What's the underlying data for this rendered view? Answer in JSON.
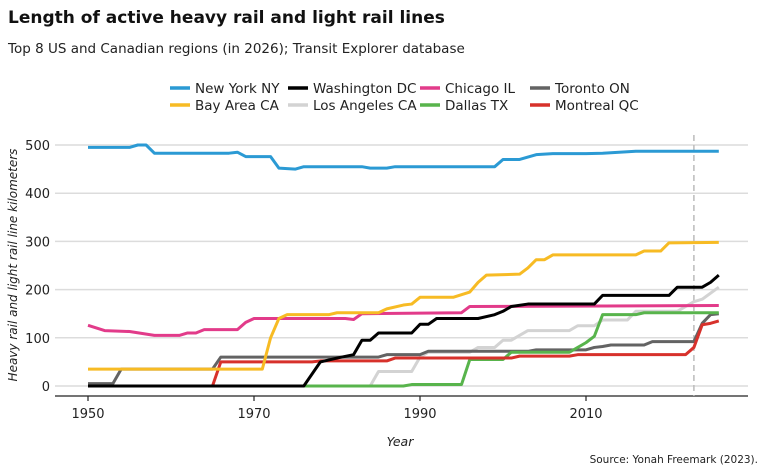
{
  "chart_data": {
    "type": "line",
    "title": "Length of active heavy rail and light rail lines",
    "subtitle": "Top 8 US and Canadian regions (in 2026); Transit Explorer database",
    "xlabel": "Year",
    "ylabel": "Heavy rail and light rail line kilometers",
    "source": "Source: Yonah Freemark (2023).",
    "xlim": [
      1948,
      2028
    ],
    "ylim": [
      -20,
      520
    ],
    "xticks": [
      1950,
      1970,
      1990,
      2010
    ],
    "yticks": [
      0,
      100,
      200,
      300,
      400,
      500
    ],
    "reference_line_year": 2023,
    "legend_position": "top",
    "series": [
      {
        "name": "New York NY",
        "color": "#2b9ad4",
        "points": [
          [
            1950,
            495
          ],
          [
            1955,
            495
          ],
          [
            1956,
            500
          ],
          [
            1957,
            500
          ],
          [
            1958,
            483
          ],
          [
            1967,
            483
          ],
          [
            1968,
            485
          ],
          [
            1969,
            476
          ],
          [
            1972,
            476
          ],
          [
            1973,
            452
          ],
          [
            1975,
            450
          ],
          [
            1976,
            455
          ],
          [
            1983,
            455
          ],
          [
            1984,
            452
          ],
          [
            1986,
            452
          ],
          [
            1987,
            455
          ],
          [
            1999,
            455
          ],
          [
            2000,
            470
          ],
          [
            2002,
            470
          ],
          [
            2004,
            480
          ],
          [
            2006,
            482
          ],
          [
            2010,
            482
          ],
          [
            2012,
            483
          ],
          [
            2016,
            487
          ],
          [
            2026,
            487
          ]
        ]
      },
      {
        "name": "Bay Area CA",
        "color": "#f7bb24",
        "points": [
          [
            1950,
            35
          ],
          [
            1971,
            35
          ],
          [
            1972,
            100
          ],
          [
            1973,
            140
          ],
          [
            1974,
            148
          ],
          [
            1979,
            148
          ],
          [
            1980,
            152
          ],
          [
            1985,
            152
          ],
          [
            1986,
            160
          ],
          [
            1988,
            168
          ],
          [
            1989,
            170
          ],
          [
            1990,
            184
          ],
          [
            1994,
            184
          ],
          [
            1996,
            195
          ],
          [
            1997,
            215
          ],
          [
            1998,
            230
          ],
          [
            2002,
            232
          ],
          [
            2003,
            245
          ],
          [
            2004,
            262
          ],
          [
            2005,
            262
          ],
          [
            2006,
            272
          ],
          [
            2016,
            272
          ],
          [
            2017,
            280
          ],
          [
            2019,
            280
          ],
          [
            2020,
            297
          ],
          [
            2026,
            298
          ]
        ]
      },
      {
        "name": "Washington DC",
        "color": "#000000",
        "points": [
          [
            1950,
            0
          ],
          [
            1976,
            0
          ],
          [
            1978,
            50
          ],
          [
            1980,
            58
          ],
          [
            1982,
            65
          ],
          [
            1983,
            95
          ],
          [
            1984,
            95
          ],
          [
            1985,
            110
          ],
          [
            1989,
            110
          ],
          [
            1990,
            128
          ],
          [
            1991,
            128
          ],
          [
            1992,
            140
          ],
          [
            1997,
            140
          ],
          [
            1999,
            148
          ],
          [
            2000,
            155
          ],
          [
            2001,
            165
          ],
          [
            2003,
            170
          ],
          [
            2011,
            170
          ],
          [
            2012,
            188
          ],
          [
            2020,
            188
          ],
          [
            2021,
            205
          ],
          [
            2024,
            205
          ],
          [
            2025,
            215
          ],
          [
            2026,
            230
          ]
        ]
      },
      {
        "name": "Los Angeles CA",
        "color": "#d3d3d3",
        "points": [
          [
            1950,
            0
          ],
          [
            1984,
            0
          ],
          [
            1985,
            30
          ],
          [
            1989,
            30
          ],
          [
            1990,
            60
          ],
          [
            1991,
            70
          ],
          [
            1996,
            70
          ],
          [
            1997,
            80
          ],
          [
            1999,
            80
          ],
          [
            2000,
            95
          ],
          [
            2001,
            95
          ],
          [
            2003,
            115
          ],
          [
            2008,
            115
          ],
          [
            2009,
            125
          ],
          [
            2011,
            125
          ],
          [
            2012,
            137
          ],
          [
            2015,
            137
          ],
          [
            2016,
            155
          ],
          [
            2021,
            155
          ],
          [
            2023,
            175
          ],
          [
            2024,
            180
          ],
          [
            2026,
            205
          ]
        ]
      },
      {
        "name": "Chicago IL",
        "color": "#e23b8a",
        "points": [
          [
            1950,
            126
          ],
          [
            1952,
            115
          ],
          [
            1955,
            113
          ],
          [
            1958,
            105
          ],
          [
            1961,
            105
          ],
          [
            1962,
            110
          ],
          [
            1963,
            110
          ],
          [
            1964,
            117
          ],
          [
            1968,
            117
          ],
          [
            1969,
            132
          ],
          [
            1970,
            140
          ],
          [
            1981,
            140
          ],
          [
            1982,
            138
          ],
          [
            1983,
            150
          ],
          [
            1995,
            152
          ],
          [
            1996,
            165
          ],
          [
            2026,
            167
          ]
        ]
      },
      {
        "name": "Dallas TX",
        "color": "#58b44c",
        "points": [
          [
            1950,
            0
          ],
          [
            1988,
            0
          ],
          [
            1989,
            3
          ],
          [
            1995,
            3
          ],
          [
            1996,
            55
          ],
          [
            2000,
            55
          ],
          [
            2001,
            70
          ],
          [
            2008,
            70
          ],
          [
            2009,
            80
          ],
          [
            2010,
            90
          ],
          [
            2011,
            103
          ],
          [
            2012,
            148
          ],
          [
            2016,
            148
          ],
          [
            2017,
            152
          ],
          [
            2026,
            152
          ]
        ]
      },
      {
        "name": "Toronto ON",
        "color": "#636363",
        "points": [
          [
            1950,
            5
          ],
          [
            1953,
            5
          ],
          [
            1954,
            35
          ],
          [
            1965,
            35
          ],
          [
            1966,
            60
          ],
          [
            1985,
            60
          ],
          [
            1986,
            65
          ],
          [
            1990,
            65
          ],
          [
            1991,
            72
          ],
          [
            2003,
            72
          ],
          [
            2004,
            75
          ],
          [
            2010,
            75
          ],
          [
            2011,
            80
          ],
          [
            2012,
            82
          ],
          [
            2013,
            85
          ],
          [
            2017,
            85
          ],
          [
            2018,
            92
          ],
          [
            2023,
            92
          ],
          [
            2024,
            130
          ],
          [
            2025,
            148
          ],
          [
            2026,
            150
          ]
        ]
      },
      {
        "name": "Montreal QC",
        "color": "#d7312b",
        "points": [
          [
            1950,
            0
          ],
          [
            1965,
            0
          ],
          [
            1966,
            50
          ],
          [
            1977,
            50
          ],
          [
            1978,
            52
          ],
          [
            1986,
            52
          ],
          [
            1987,
            58
          ],
          [
            2001,
            58
          ],
          [
            2002,
            62
          ],
          [
            2008,
            62
          ],
          [
            2009,
            65
          ],
          [
            2022,
            65
          ],
          [
            2023,
            80
          ],
          [
            2024,
            127
          ],
          [
            2025,
            130
          ],
          [
            2026,
            135
          ]
        ]
      }
    ]
  }
}
